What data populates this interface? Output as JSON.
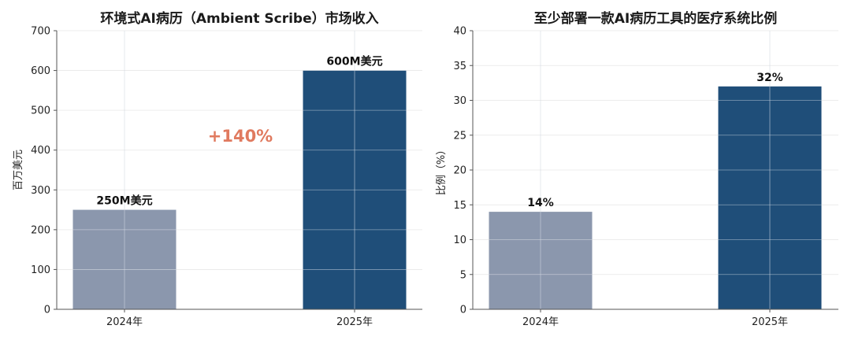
{
  "colors": {
    "bar_2024": "#8b97ad",
    "bar_2025": "#1f4e79",
    "annotation": "#e07a5f",
    "grid": "#d9d9d9",
    "axis": "#555555"
  },
  "chart_data": [
    {
      "type": "bar",
      "title": "环境式AI病历（Ambient Scribe）市场收入",
      "ylabel": "百万美元",
      "xlabel": "",
      "categories": [
        "2024年",
        "2025年"
      ],
      "values": [
        250,
        600
      ],
      "data_labels": [
        "250M美元",
        "600M美元"
      ],
      "ylim": [
        0,
        700
      ],
      "yticks": [
        0,
        100,
        200,
        300,
        400,
        500,
        600,
        700
      ],
      "annotation": "+140%",
      "grid": true
    },
    {
      "type": "bar",
      "title": "至少部署一款AI病历工具的医疗系统比例",
      "ylabel": "比例（%）",
      "xlabel": "",
      "categories": [
        "2024年",
        "2025年"
      ],
      "values": [
        14,
        32
      ],
      "data_labels": [
        "14%",
        "32%"
      ],
      "ylim": [
        0,
        40
      ],
      "yticks": [
        0,
        5,
        10,
        15,
        20,
        25,
        30,
        35,
        40
      ],
      "annotation": "",
      "grid": true
    }
  ]
}
